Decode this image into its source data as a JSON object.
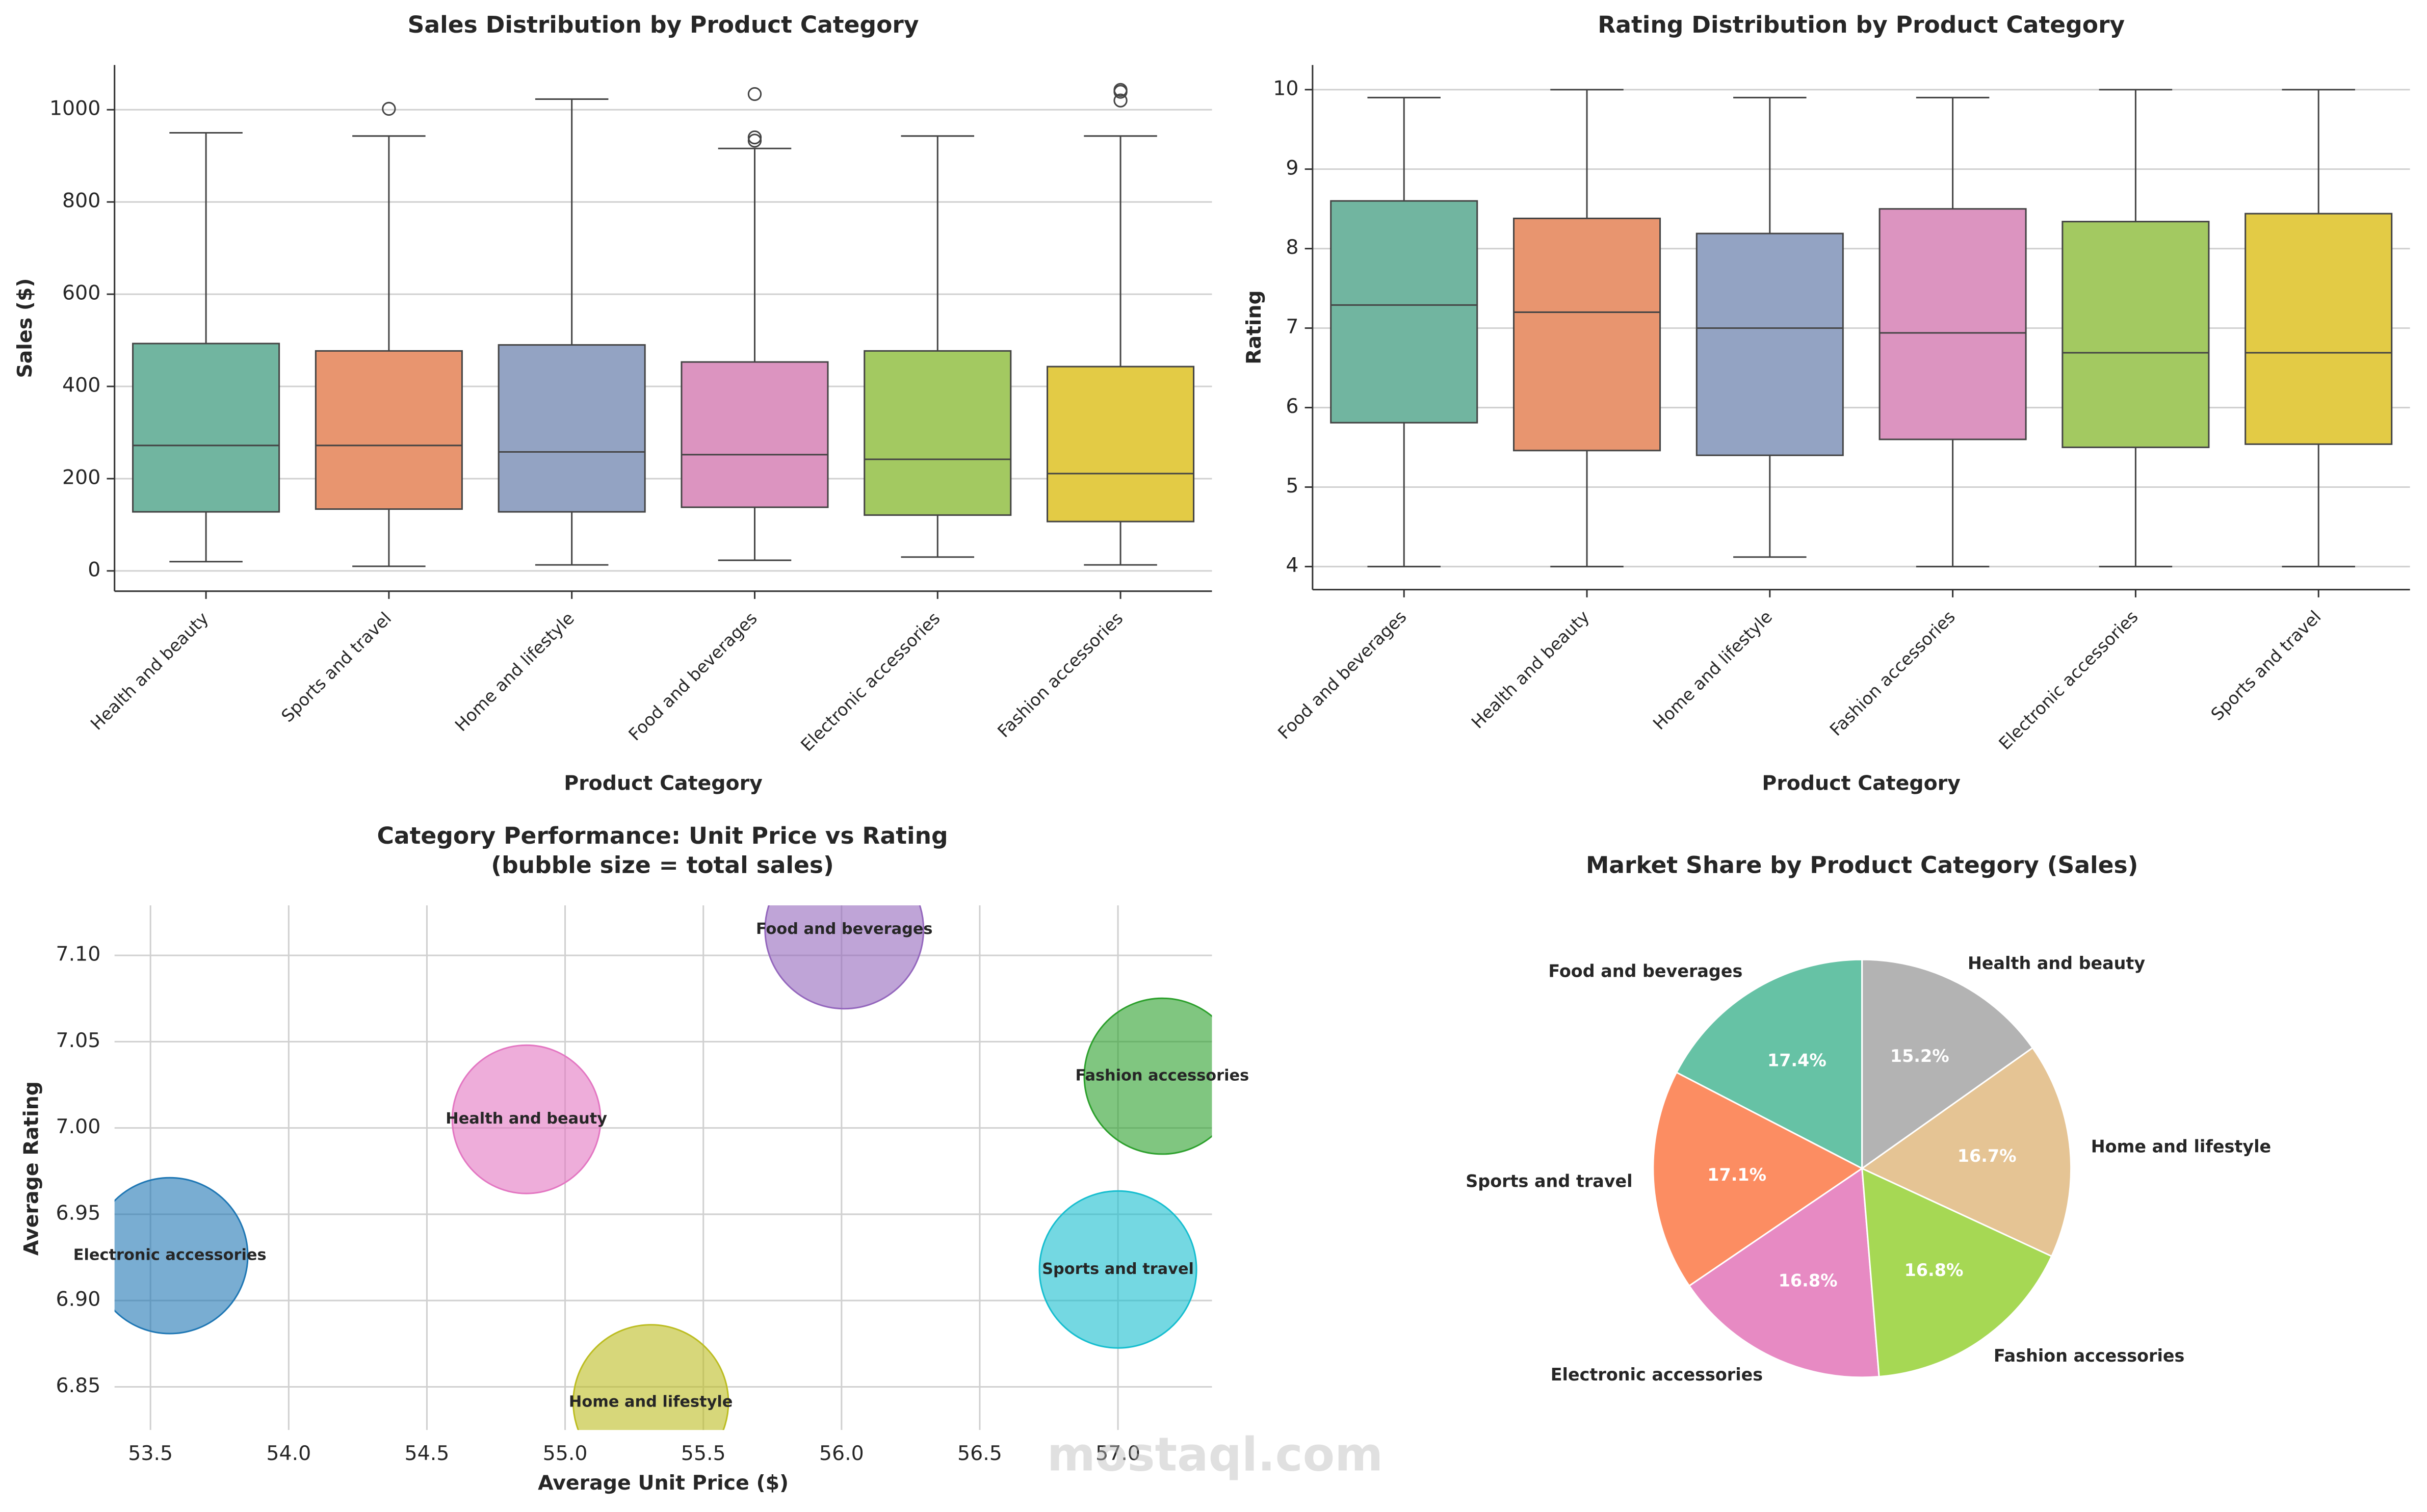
{
  "chart_data": [
    {
      "type": "box",
      "title": "Sales Distribution by Product Category",
      "xlabel": "Product Category",
      "ylabel": "Sales ($)",
      "categories": [
        "Health and beauty",
        "Sports and travel",
        "Home and lifestyle",
        "Food and beverages",
        "Electronic accessories",
        "Fashion accessories"
      ],
      "colors": [
        "#71b5a0",
        "#e8956f",
        "#93a3c3",
        "#dc94c0",
        "#a3c961",
        "#e3cb45"
      ],
      "boxes": [
        {
          "whislo": 20,
          "q1": 128,
          "med": 272,
          "q3": 493,
          "whishi": 950,
          "fliers": []
        },
        {
          "whislo": 10,
          "q1": 134,
          "med": 272,
          "q3": 477,
          "whishi": 943,
          "fliers": [
            1002
          ]
        },
        {
          "whislo": 13,
          "q1": 128,
          "med": 258,
          "q3": 490,
          "whishi": 1023,
          "fliers": []
        },
        {
          "whislo": 23,
          "q1": 138,
          "med": 252,
          "q3": 453,
          "whishi": 916,
          "fliers": [
            1034,
            940,
            933
          ]
        },
        {
          "whislo": 30,
          "q1": 121,
          "med": 242,
          "q3": 477,
          "whishi": 943,
          "fliers": []
        },
        {
          "whislo": 13,
          "q1": 107,
          "med": 211,
          "q3": 443,
          "whishi": 943,
          "fliers": [
            1043,
            1020,
            1039
          ]
        }
      ],
      "ylim": [
        -44,
        1097
      ],
      "yticks": [
        0,
        200,
        400,
        600,
        800,
        1000
      ],
      "grid": true
    },
    {
      "type": "box",
      "title": "Rating Distribution by Product Category",
      "xlabel": "Product Category",
      "ylabel": "Rating",
      "categories": [
        "Food and beverages",
        "Health and beauty",
        "Home and lifestyle",
        "Fashion accessories",
        "Electronic accessories",
        "Sports and travel"
      ],
      "colors": [
        "#71b5a0",
        "#e8956f",
        "#93a3c3",
        "#dc94c0",
        "#a3c961",
        "#e3cb45"
      ],
      "boxes": [
        {
          "whislo": 4.0,
          "q1": 5.81,
          "med": 7.29,
          "q3": 8.6,
          "whishi": 9.9,
          "fliers": []
        },
        {
          "whislo": 4.0,
          "q1": 5.46,
          "med": 7.2,
          "q3": 8.38,
          "whishi": 10,
          "fliers": []
        },
        {
          "whislo": 4.12,
          "q1": 5.4,
          "med": 7.0,
          "q3": 8.19,
          "whishi": 9.9,
          "fliers": []
        },
        {
          "whislo": 4.0,
          "q1": 5.6,
          "med": 6.94,
          "q3": 8.5,
          "whishi": 9.9,
          "fliers": []
        },
        {
          "whislo": 4.0,
          "q1": 5.5,
          "med": 6.69,
          "q3": 8.34,
          "whishi": 10,
          "fliers": []
        },
        {
          "whislo": 4.0,
          "q1": 5.54,
          "med": 6.69,
          "q3": 8.44,
          "whishi": 10,
          "fliers": []
        }
      ],
      "ylim": [
        3.71,
        10.31
      ],
      "yticks": [
        4,
        5,
        6,
        7,
        8,
        9,
        10
      ],
      "grid": true
    },
    {
      "type": "bubble",
      "title": "Category Performance: Unit Price vs Rating",
      "subtitle": "(bubble size = total sales)",
      "xlabel": "Average Unit Price ($)",
      "ylabel": "Average Rating",
      "categories": [
        "Electronic accessories",
        "Health and beauty",
        "Home and lifestyle",
        "Food and beverages",
        "Fashion accessories",
        "Sports and travel"
      ],
      "x": [
        53.57,
        54.86,
        55.31,
        56.01,
        57.16,
        57.0
      ],
      "values": [
        6.926,
        7.005,
        6.841,
        7.115,
        7.03,
        6.918
      ],
      "sizes": [
        54337.5,
        49193.7,
        53861.9,
        56144.8,
        54305.9,
        55122.8
      ],
      "colors": [
        "#1f77b4",
        "#e377c2",
        "#bcbd22",
        "#9467bd",
        "#2ca02c",
        "#17becf"
      ],
      "xlim": [
        53.37,
        57.34
      ],
      "ylim": [
        6.825,
        7.129
      ],
      "xticks": [
        {
          "value": 53.5,
          "label": "53.5"
        },
        {
          "value": 54,
          "label": "54.0"
        },
        {
          "value": 54.5,
          "label": "54.5"
        },
        {
          "value": 55,
          "label": "55.0"
        },
        {
          "value": 55.5,
          "label": "55.5"
        },
        {
          "value": 56,
          "label": "56.0"
        },
        {
          "value": 56.5,
          "label": "56.5"
        },
        {
          "value": 57,
          "label": "57.0"
        }
      ],
      "yticks": [
        6.85,
        {
          "value": 6.9,
          "label": "6.90"
        },
        6.95,
        {
          "value": 7,
          "label": "7.00"
        },
        7.05,
        {
          "value": 7.1,
          "label": "7.10"
        }
      ],
      "grid": true
    },
    {
      "type": "pie",
      "title": "Market Share by Product Category (Sales)",
      "categories": [
        "Food and beverages",
        "Sports and travel",
        "Electronic accessories",
        "Fashion accessories",
        "Home and lifestyle",
        "Health and beauty"
      ],
      "values": [
        17.4,
        17.1,
        16.8,
        16.8,
        16.7,
        15.2
      ],
      "value_labels": [
        "17.4%",
        "17.1%",
        "16.8%",
        "16.8%",
        "16.7%",
        "15.2%"
      ],
      "colors": [
        "#66c2a5",
        "#fc8d62",
        "#e78ac3",
        "#a6d854",
        "#e5c494",
        "#b3b3b3"
      ],
      "start_angle": 90
    }
  ],
  "watermark": "mostaql.com"
}
